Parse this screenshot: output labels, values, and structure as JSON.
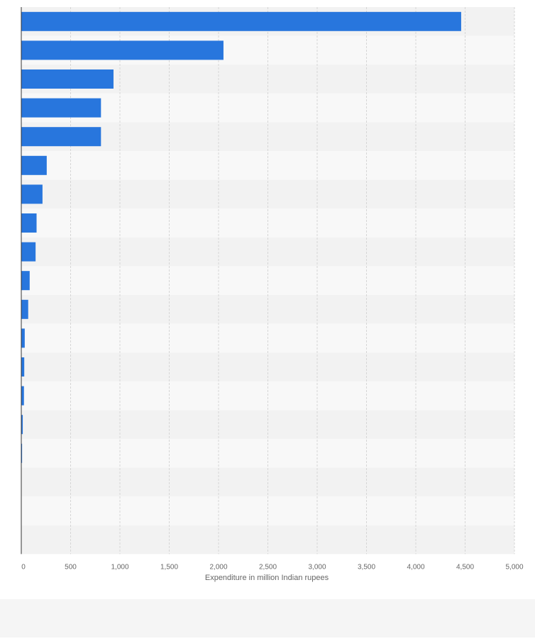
{
  "chart_data": {
    "type": "bar",
    "orientation": "horizontal",
    "categories": [
      "",
      "",
      "",
      "",
      "",
      "",
      "",
      "",
      "",
      "",
      "",
      "",
      "",
      "",
      "",
      "",
      "",
      "",
      ""
    ],
    "values": [
      4460,
      2050,
      935,
      808,
      808,
      258,
      215,
      155,
      145,
      85,
      70,
      35,
      30,
      27,
      15,
      8,
      1,
      0,
      0
    ],
    "title": "",
    "xlabel": "Expenditure in million Indian rupees",
    "ylabel": "",
    "xlim": [
      0,
      5000
    ],
    "xticks": [
      0,
      500,
      1000,
      1500,
      2000,
      2500,
      3000,
      3500,
      4000,
      4500,
      5000
    ],
    "xtick_labels": [
      "0",
      "500",
      "1,000",
      "1,500",
      "2,000",
      "2,500",
      "3,000",
      "3,500",
      "4,000",
      "4,500",
      "5,000"
    ],
    "grid": true,
    "bar_color": "#2876dd",
    "band_colors": [
      "#f2f2f2",
      "#f8f8f8"
    ],
    "background": "#ffffff",
    "footer_background": "#f5f5f5"
  }
}
